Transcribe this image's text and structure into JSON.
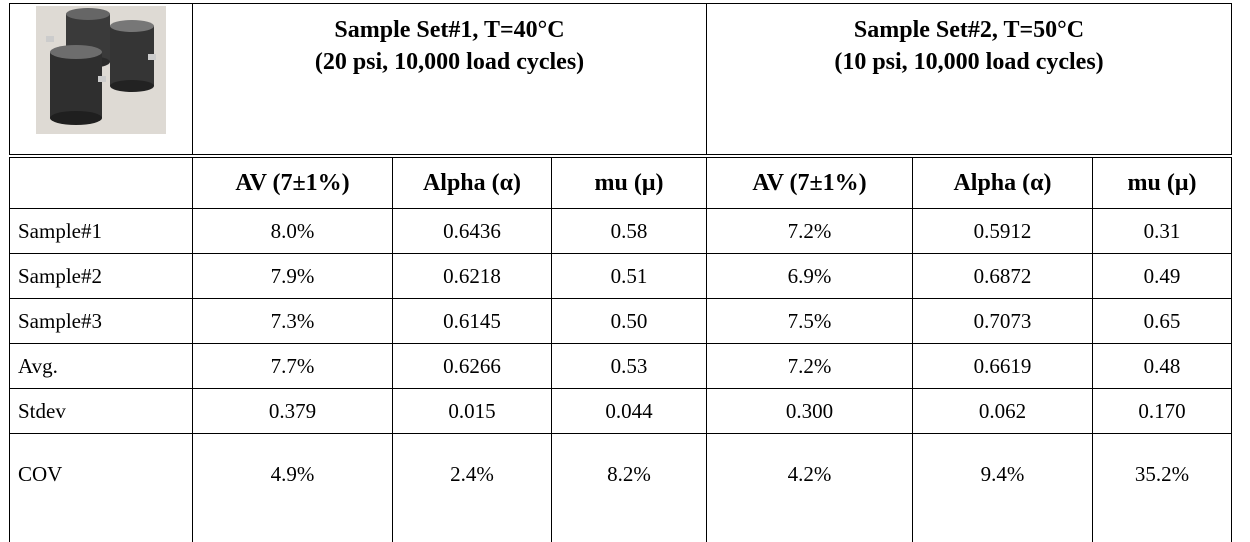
{
  "header": {
    "sets": [
      {
        "title": "Sample Set#1, T=40°C",
        "conditions": "(20 psi, 10,000 load cycles)"
      },
      {
        "title": "Sample Set#2, T=50°C",
        "conditions": "(10 psi, 10,000 load cycles)"
      }
    ]
  },
  "columns": [
    "AV (7±1%)",
    "Alpha (α)",
    "mu (μ)",
    "AV (7±1%)",
    "Alpha (α)",
    "mu (μ)"
  ],
  "rows": [
    {
      "label": "Sample#1",
      "values": [
        "8.0%",
        "0.6436",
        "0.58",
        "7.2%",
        "0.5912",
        "0.31"
      ]
    },
    {
      "label": "Sample#2",
      "values": [
        "7.9%",
        "0.6218",
        "0.51",
        "6.9%",
        "0.6872",
        "0.49"
      ]
    },
    {
      "label": "Sample#3",
      "values": [
        "7.3%",
        "0.6145",
        "0.50",
        "7.5%",
        "0.7073",
        "0.65"
      ]
    },
    {
      "label": "Avg.",
      "values": [
        "7.7%",
        "0.6266",
        "0.53",
        "7.2%",
        "0.6619",
        "0.48"
      ]
    },
    {
      "label": "Stdev",
      "values": [
        "0.379",
        "0.015",
        "0.044",
        "0.300",
        "0.062",
        "0.170"
      ]
    },
    {
      "label": "COV",
      "values": [
        "4.9%",
        "2.4%",
        "8.2%",
        "4.2%",
        "9.4%",
        "35.2%"
      ]
    }
  ]
}
